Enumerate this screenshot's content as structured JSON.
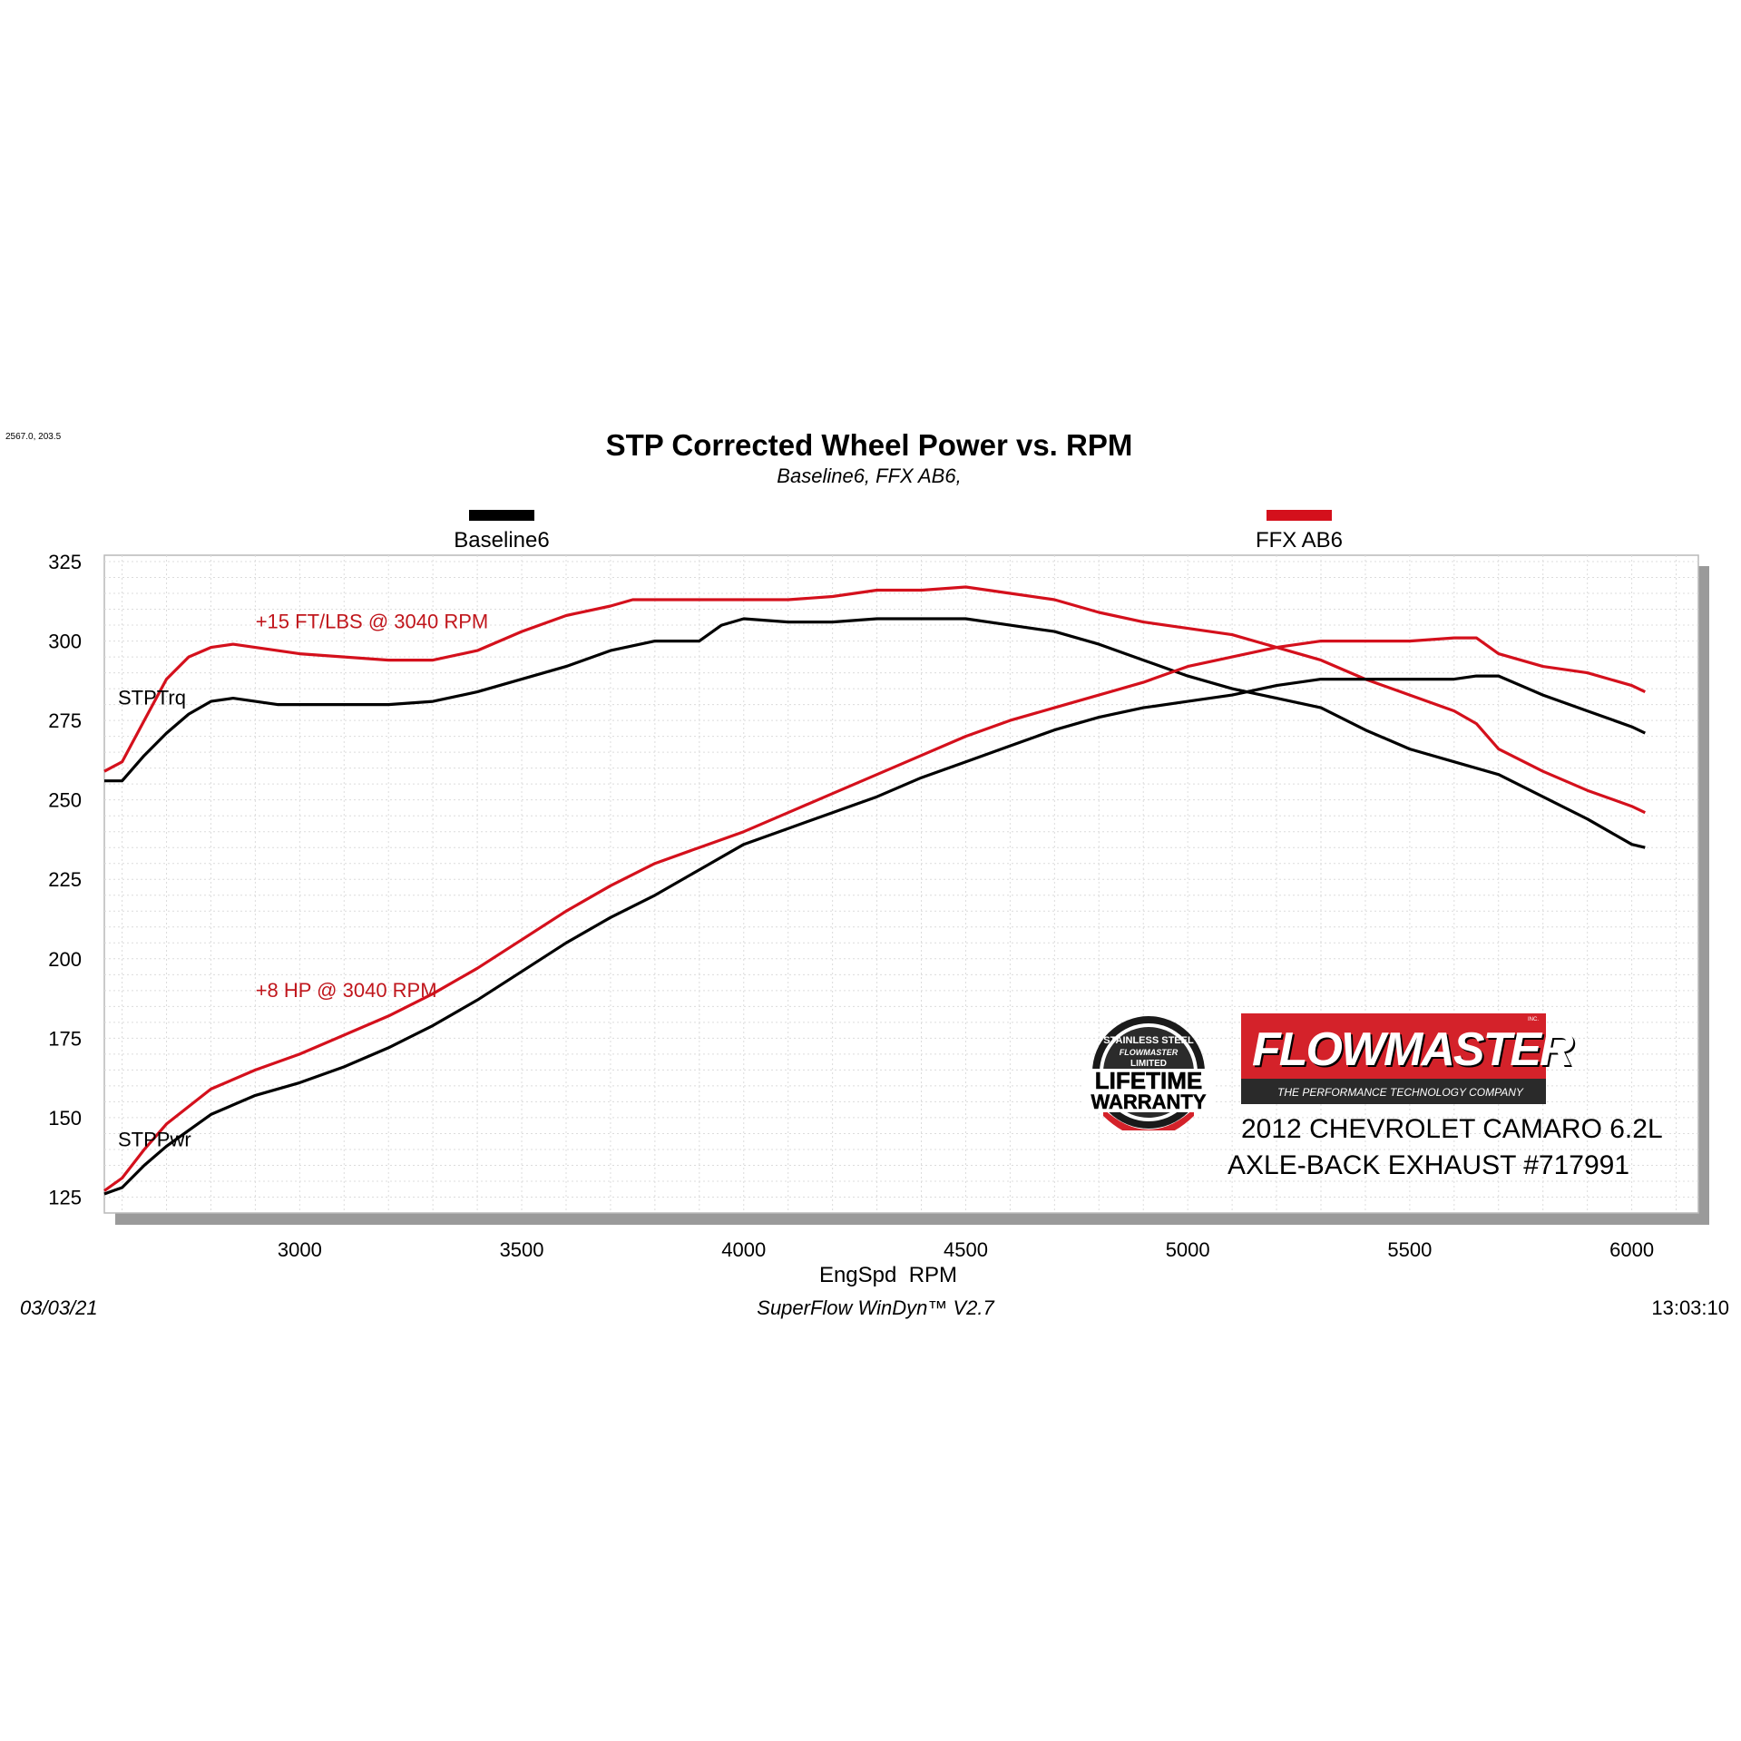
{
  "corner_readout": "2567.0, 203.5",
  "footer": {
    "date": "03/03/21",
    "software": "SuperFlow WinDyn™ V2.7",
    "time": "13:03:10"
  },
  "branding": {
    "logo_word": "FLOWMASTER",
    "logo_tagline": "THE PERFORMANCE TECHNOLOGY COMPANY",
    "logo_inc": "INC.",
    "warranty_lines": [
      "STAINLESS STEEL",
      "FLOWMASTER",
      "LIMITED",
      "LIFETIME",
      "WARRANTY"
    ],
    "car_line1": "2012 CHEVROLET CAMARO 6.2L",
    "car_line2": "AXLE-BACK EXHAUST #717991",
    "colors": {
      "brand_red": "#d4222a",
      "dark": "#2a2a2a"
    }
  },
  "chart_data": {
    "type": "line",
    "title": "STP Corrected Wheel Power vs. RPM",
    "subtitle": "Baseline6, FFX AB6,",
    "xlabel": "EngSpd  RPM",
    "ylabel": "",
    "xlim": [
      2560,
      6150
    ],
    "ylim": [
      120,
      327
    ],
    "xticks": [
      3000,
      3500,
      4000,
      4500,
      5000,
      5500,
      6000
    ],
    "yticks": [
      125,
      150,
      175,
      200,
      225,
      250,
      275,
      300,
      325
    ],
    "grid": true,
    "legend": [
      {
        "name": "Baseline6",
        "color": "#000000"
      },
      {
        "name": "FFX AB6",
        "color": "#d4101c"
      }
    ],
    "annotations": [
      {
        "text": "+15 FT/LBS @ 3040 RPM",
        "x": 2870,
        "y": 304,
        "color": "#c0161c"
      },
      {
        "text": "+8 HP @ 3040 RPM",
        "x": 2870,
        "y": 188,
        "color": "#c0161c"
      },
      {
        "text": "STPTrq",
        "x": 2560,
        "y": 280,
        "color": "#000000"
      },
      {
        "text": "STPPwr",
        "x": 2560,
        "y": 141,
        "color": "#000000"
      }
    ],
    "series": [
      {
        "name": "Baseline6",
        "measure": "STPTrq",
        "color": "#000000",
        "x": [
          2560,
          2600,
          2650,
          2700,
          2750,
          2800,
          2850,
          2900,
          2950,
          3000,
          3100,
          3200,
          3300,
          3400,
          3500,
          3600,
          3700,
          3800,
          3900,
          3950,
          4000,
          4100,
          4200,
          4300,
          4400,
          4500,
          4600,
          4700,
          4800,
          4900,
          5000,
          5100,
          5200,
          5300,
          5400,
          5500,
          5600,
          5700,
          5800,
          5900,
          6000,
          6030
        ],
        "y": [
          256,
          256,
          264,
          271,
          277,
          281,
          282,
          281,
          280,
          280,
          280,
          280,
          281,
          284,
          288,
          292,
          297,
          300,
          300,
          305,
          307,
          306,
          306,
          307,
          307,
          307,
          305,
          303,
          299,
          294,
          289,
          285,
          282,
          279,
          272,
          266,
          262,
          258,
          251,
          244,
          236,
          235
        ]
      },
      {
        "name": "FFX AB6",
        "measure": "STPTrq",
        "color": "#d4101c",
        "x": [
          2560,
          2600,
          2650,
          2700,
          2750,
          2800,
          2850,
          2900,
          2950,
          3000,
          3100,
          3200,
          3300,
          3400,
          3500,
          3600,
          3700,
          3750,
          3800,
          3900,
          4000,
          4100,
          4200,
          4300,
          4400,
          4500,
          4600,
          4700,
          4800,
          4900,
          5000,
          5100,
          5200,
          5300,
          5400,
          5500,
          5600,
          5650,
          5700,
          5800,
          5900,
          6000,
          6030
        ],
        "y": [
          259,
          262,
          275,
          288,
          295,
          298,
          299,
          298,
          297,
          296,
          295,
          294,
          294,
          297,
          303,
          308,
          311,
          313,
          313,
          313,
          313,
          313,
          314,
          316,
          316,
          317,
          315,
          313,
          309,
          306,
          304,
          302,
          298,
          294,
          288,
          283,
          278,
          274,
          266,
          259,
          253,
          248,
          246
        ]
      },
      {
        "name": "Baseline6",
        "measure": "STPPwr",
        "color": "#000000",
        "x": [
          2560,
          2600,
          2650,
          2700,
          2800,
          2900,
          3000,
          3100,
          3200,
          3300,
          3400,
          3500,
          3600,
          3700,
          3800,
          3900,
          4000,
          4100,
          4200,
          4300,
          4400,
          4500,
          4600,
          4700,
          4800,
          4900,
          5000,
          5100,
          5200,
          5300,
          5400,
          5500,
          5600,
          5650,
          5700,
          5800,
          5900,
          6000,
          6030
        ],
        "y": [
          126,
          128,
          135,
          141,
          151,
          157,
          161,
          166,
          172,
          179,
          187,
          196,
          205,
          213,
          220,
          228,
          236,
          241,
          246,
          251,
          257,
          262,
          267,
          272,
          276,
          279,
          281,
          283,
          286,
          288,
          288,
          288,
          288,
          289,
          289,
          283,
          278,
          273,
          271
        ]
      },
      {
        "name": "FFX AB6",
        "measure": "STPPwr",
        "color": "#d4101c",
        "x": [
          2560,
          2600,
          2650,
          2700,
          2800,
          2900,
          3000,
          3100,
          3200,
          3300,
          3400,
          3500,
          3600,
          3700,
          3800,
          3900,
          4000,
          4100,
          4200,
          4300,
          4400,
          4500,
          4600,
          4700,
          4800,
          4900,
          5000,
          5100,
          5200,
          5300,
          5400,
          5500,
          5600,
          5650,
          5700,
          5800,
          5900,
          6000,
          6030
        ],
        "y": [
          127,
          131,
          140,
          148,
          159,
          165,
          170,
          176,
          182,
          189,
          197,
          206,
          215,
          223,
          230,
          235,
          240,
          246,
          252,
          258,
          264,
          270,
          275,
          279,
          283,
          287,
          292,
          295,
          298,
          300,
          300,
          300,
          301,
          301,
          296,
          292,
          290,
          286,
          284
        ]
      }
    ]
  }
}
